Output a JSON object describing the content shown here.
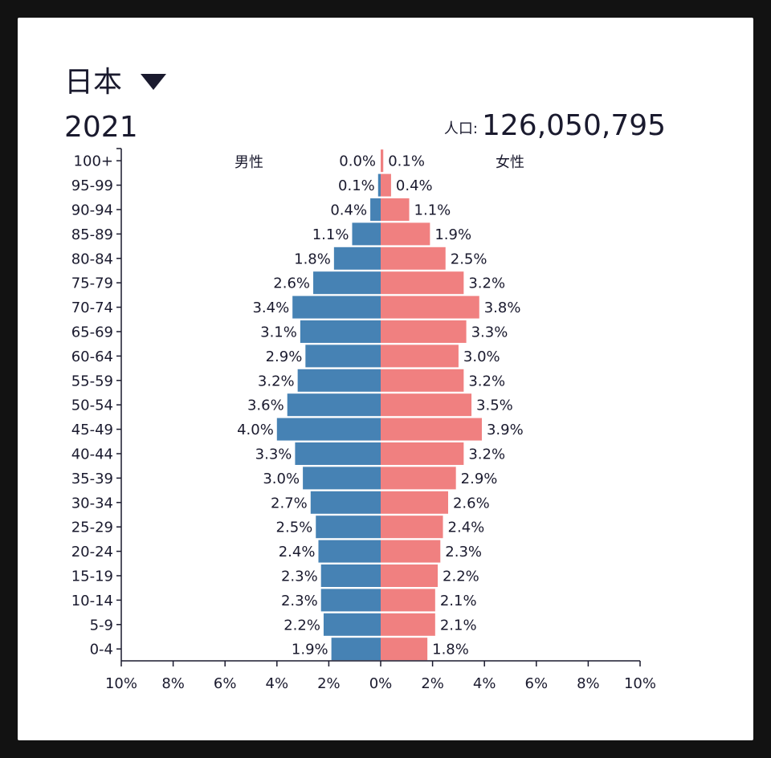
{
  "header": {
    "country": "日本",
    "country_dropdown_icon": "triangle-down-icon",
    "year": "2021",
    "population_label": "人口:",
    "population_value": "126,050,795"
  },
  "colors": {
    "male": "#4682b4",
    "female": "#f08080",
    "text": "#1a1a2e",
    "axis": "#1a1a2e"
  },
  "chart_data": {
    "type": "bar",
    "orientation": "horizontal",
    "subtype": "population-pyramid",
    "title": "",
    "xlim": [
      -10,
      10
    ],
    "x_ticks": [
      -10,
      -8,
      -6,
      -4,
      -2,
      0,
      2,
      4,
      6,
      8,
      10
    ],
    "x_tick_labels": [
      "10%",
      "8%",
      "6%",
      "4%",
      "2%",
      "0%",
      "2%",
      "4%",
      "6%",
      "8%",
      "10%"
    ],
    "categories": [
      "100+",
      "95-99",
      "90-94",
      "85-89",
      "80-84",
      "75-79",
      "70-74",
      "65-69",
      "60-64",
      "55-59",
      "50-54",
      "45-49",
      "40-44",
      "35-39",
      "30-34",
      "25-29",
      "20-24",
      "15-19",
      "10-14",
      "5-9",
      "0-4"
    ],
    "series": [
      {
        "name": "男性",
        "side": "left",
        "values": [
          0.0,
          0.1,
          0.4,
          1.1,
          1.8,
          2.6,
          3.4,
          3.1,
          2.9,
          3.2,
          3.6,
          4.0,
          3.3,
          3.0,
          2.7,
          2.5,
          2.4,
          2.3,
          2.3,
          2.2,
          1.9
        ],
        "labels": [
          "0.0%",
          "0.1%",
          "0.4%",
          "1.1%",
          "1.8%",
          "2.6%",
          "3.4%",
          "3.1%",
          "2.9%",
          "3.2%",
          "3.6%",
          "4.0%",
          "3.3%",
          "3.0%",
          "2.7%",
          "2.5%",
          "2.4%",
          "2.3%",
          "2.3%",
          "2.2%",
          "1.9%"
        ]
      },
      {
        "name": "女性",
        "side": "right",
        "values": [
          0.1,
          0.4,
          1.1,
          1.9,
          2.5,
          3.2,
          3.8,
          3.3,
          3.0,
          3.2,
          3.5,
          3.9,
          3.2,
          2.9,
          2.6,
          2.4,
          2.3,
          2.2,
          2.1,
          2.1,
          1.8
        ],
        "labels": [
          "0.1%",
          "0.4%",
          "1.1%",
          "1.9%",
          "2.5%",
          "3.2%",
          "3.8%",
          "3.3%",
          "3.0%",
          "3.2%",
          "3.5%",
          "3.9%",
          "3.2%",
          "2.9%",
          "2.6%",
          "2.4%",
          "2.3%",
          "2.2%",
          "2.1%",
          "2.1%",
          "1.8%"
        ]
      }
    ],
    "grid": false
  }
}
